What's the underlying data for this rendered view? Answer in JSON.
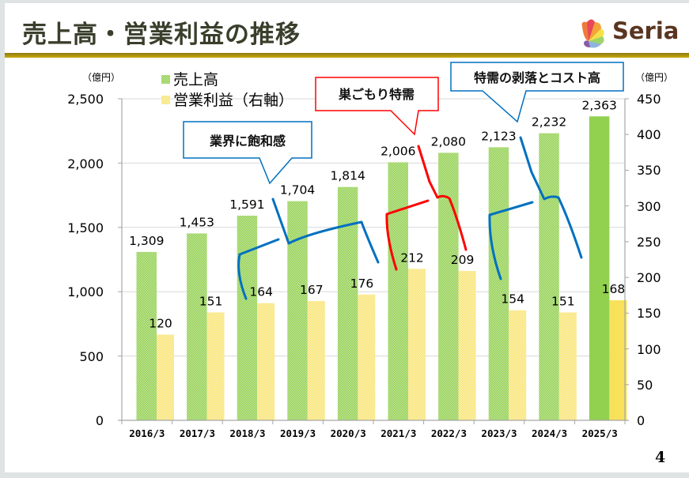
{
  "header": {
    "title": "売上高・営業利益の推移",
    "logo_text": "Seria"
  },
  "page_number": "4",
  "colors": {
    "sales": "#92d050",
    "profit": "#f7e15a",
    "callout_blue": "#0070c0",
    "callout_red": "#ff0000",
    "title": "#3a3f2c",
    "rule": "#b59a0c"
  },
  "callouts": [
    {
      "text": "業界に飽和感",
      "color": "blue"
    },
    {
      "text": "巣ごもり特需",
      "color": "red"
    },
    {
      "text": "特需の剥落とコスト高",
      "color": "blue"
    }
  ],
  "chart_data": {
    "type": "bar",
    "title": "",
    "categories": [
      "2016/3",
      "2017/3",
      "2018/3",
      "2019/3",
      "2020/3",
      "2021/3",
      "2022/3",
      "2023/3",
      "2024/3",
      "2025/3"
    ],
    "series": [
      {
        "name": "売上高",
        "axis": "left",
        "values": [
          1309,
          1453,
          1591,
          1704,
          1814,
          2006,
          2080,
          2123,
          2232,
          2363
        ],
        "labels": [
          "1,309",
          "1,453",
          "1,591",
          "1,704",
          "1,814",
          "2,006",
          "2,080",
          "2,123",
          "2,232",
          "2,363"
        ]
      },
      {
        "name": "営業利益（右軸）",
        "axis": "right",
        "values": [
          120,
          151,
          164,
          167,
          176,
          212,
          209,
          154,
          151,
          168
        ],
        "labels": [
          "120",
          "151",
          "164",
          "167",
          "176",
          "212",
          "209",
          "154",
          "151",
          "168"
        ]
      }
    ],
    "left_axis": {
      "unit": "（億円）",
      "ylim": [
        0,
        2500
      ],
      "ticks": [
        "0",
        "500",
        "1,000",
        "1,500",
        "2,000",
        "2,500"
      ],
      "tick_values": [
        0,
        500,
        1000,
        1500,
        2000,
        2500
      ]
    },
    "right_axis": {
      "unit": "（億円）",
      "ylim": [
        0,
        450
      ],
      "ticks": [
        "0",
        "50",
        "100",
        "150",
        "200",
        "250",
        "300",
        "350",
        "400",
        "450"
      ],
      "tick_values": [
        0,
        50,
        100,
        150,
        200,
        250,
        300,
        350,
        400,
        450
      ]
    },
    "grid": true,
    "legend": "top-left",
    "highlight_last_category": true
  }
}
